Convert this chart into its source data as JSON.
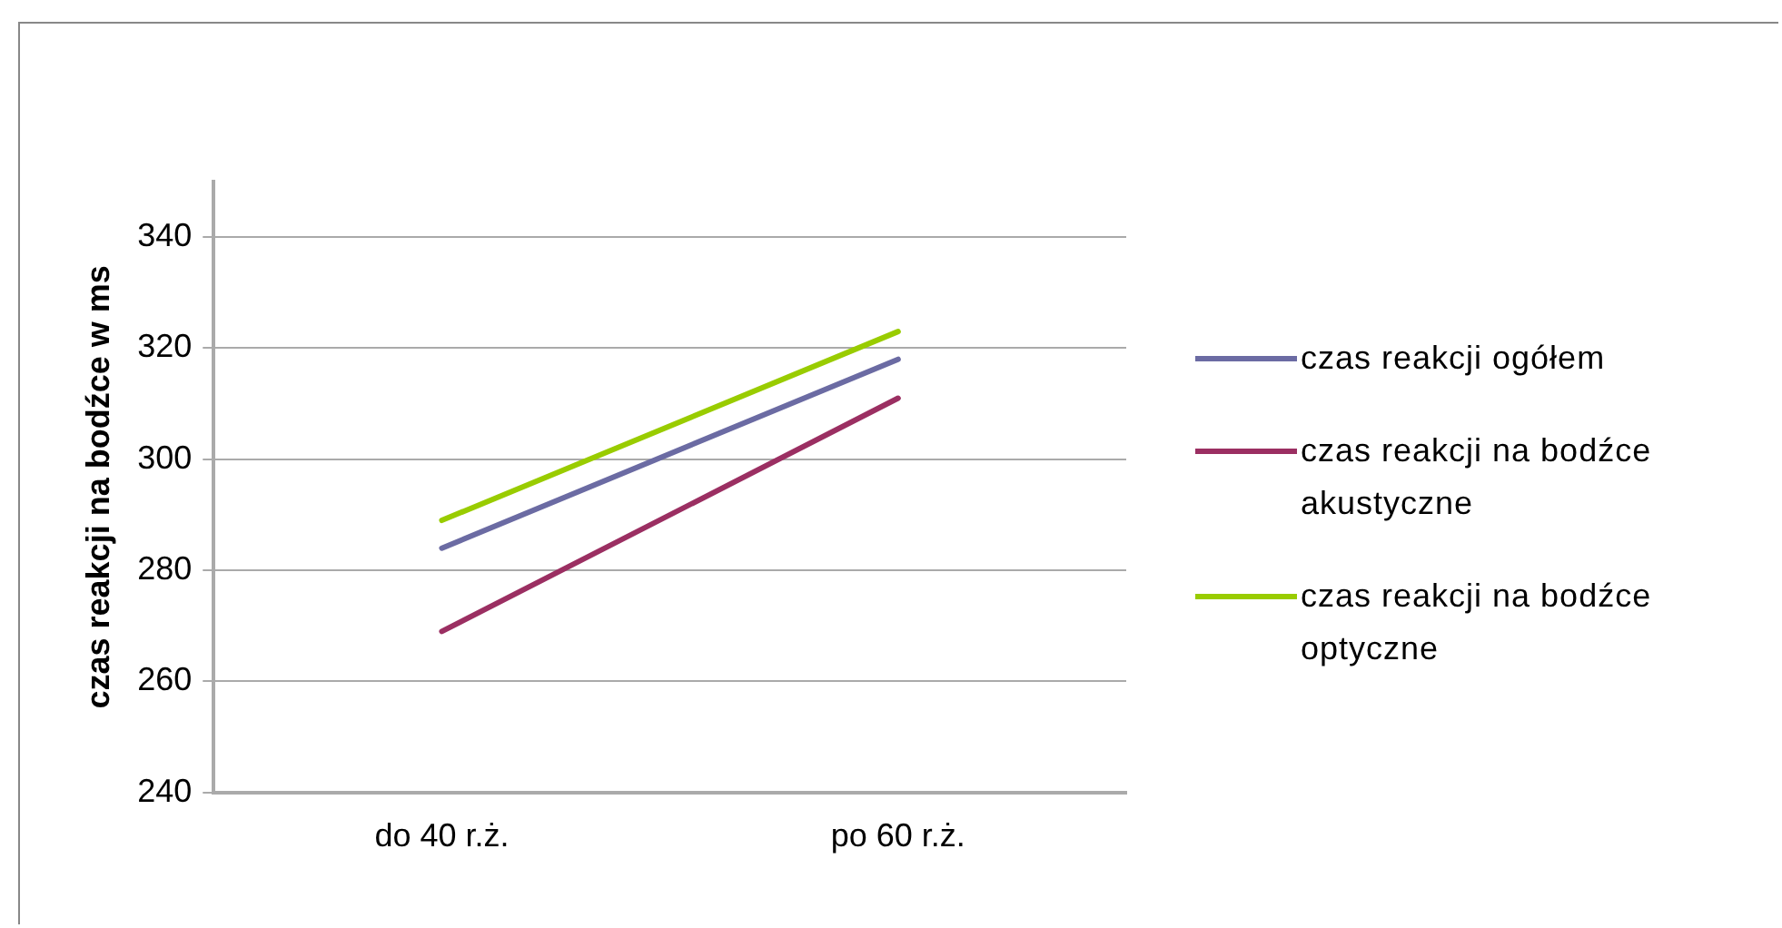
{
  "chart_data": {
    "type": "line",
    "ylabel": "czas reakcji na bodźce w ms",
    "categories": [
      "do 40 r.ż.",
      "po 60 r.ż."
    ],
    "series": [
      {
        "name": "czas reakcji ogółem",
        "color": "#6b6ba3",
        "values": [
          284,
          318
        ]
      },
      {
        "name": "czas reakcji na bodźce akustyczne",
        "color": "#9b2f62",
        "values": [
          269,
          311
        ]
      },
      {
        "name": "czas reakcji na bodźce optyczne",
        "color": "#99cc00",
        "values": [
          289,
          323
        ]
      }
    ],
    "ylim": [
      240,
      350
    ],
    "yticks": [
      240,
      260,
      280,
      300,
      320,
      340
    ],
    "grid": "y",
    "legend": "right",
    "marker": "none",
    "line_style": "solid"
  }
}
